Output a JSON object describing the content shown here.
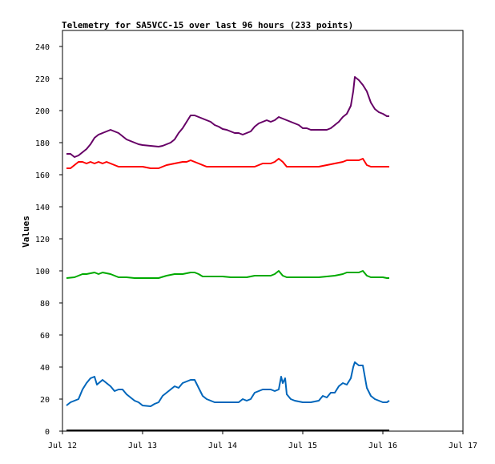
{
  "chart_data": {
    "type": "line",
    "title": "Telemetry for SA5VCC-15 over last 96 hours (233 points)",
    "xlabel": "",
    "ylabel": "Values",
    "ylim": [
      0,
      250
    ],
    "y_ticks": [
      0,
      20,
      40,
      60,
      80,
      100,
      120,
      140,
      160,
      180,
      200,
      220,
      240
    ],
    "x_ticks": [
      "Jul 12",
      "Jul 13",
      "Jul 14",
      "Jul 15",
      "Jul 16",
      "Jul 17"
    ],
    "x_unit": "days since Jul 12 00:00",
    "xlim": [
      0,
      5
    ],
    "grid": false,
    "series": [
      {
        "color": "#660066",
        "points": [
          [
            0.05,
            173
          ],
          [
            0.1,
            173
          ],
          [
            0.15,
            171
          ],
          [
            0.2,
            172
          ],
          [
            0.25,
            174
          ],
          [
            0.3,
            176
          ],
          [
            0.35,
            179
          ],
          [
            0.4,
            183
          ],
          [
            0.45,
            185
          ],
          [
            0.5,
            186
          ],
          [
            0.55,
            187
          ],
          [
            0.6,
            188
          ],
          [
            0.65,
            187
          ],
          [
            0.7,
            186
          ],
          [
            0.75,
            184
          ],
          [
            0.8,
            182
          ],
          [
            0.85,
            181
          ],
          [
            0.9,
            180
          ],
          [
            0.95,
            179
          ],
          [
            1.0,
            178.5
          ],
          [
            1.1,
            178
          ],
          [
            1.2,
            177.5
          ],
          [
            1.25,
            178
          ],
          [
            1.3,
            179
          ],
          [
            1.35,
            180
          ],
          [
            1.4,
            182
          ],
          [
            1.45,
            186
          ],
          [
            1.5,
            189
          ],
          [
            1.55,
            193
          ],
          [
            1.6,
            197
          ],
          [
            1.65,
            197
          ],
          [
            1.7,
            196
          ],
          [
            1.75,
            195
          ],
          [
            1.8,
            194
          ],
          [
            1.85,
            193
          ],
          [
            1.9,
            191
          ],
          [
            1.95,
            190
          ],
          [
            2.0,
            188.5
          ],
          [
            2.05,
            188
          ],
          [
            2.1,
            187
          ],
          [
            2.15,
            186
          ],
          [
            2.2,
            186
          ],
          [
            2.25,
            185
          ],
          [
            2.3,
            186
          ],
          [
            2.35,
            187
          ],
          [
            2.4,
            190
          ],
          [
            2.45,
            192
          ],
          [
            2.5,
            193
          ],
          [
            2.55,
            194
          ],
          [
            2.6,
            193
          ],
          [
            2.65,
            194
          ],
          [
            2.7,
            196
          ],
          [
            2.75,
            195
          ],
          [
            2.8,
            194
          ],
          [
            2.85,
            193
          ],
          [
            2.9,
            192
          ],
          [
            2.95,
            191
          ],
          [
            3.0,
            189
          ],
          [
            3.05,
            189
          ],
          [
            3.1,
            188
          ],
          [
            3.2,
            188
          ],
          [
            3.3,
            188
          ],
          [
            3.35,
            189
          ],
          [
            3.4,
            191
          ],
          [
            3.45,
            193
          ],
          [
            3.5,
            196
          ],
          [
            3.55,
            198
          ],
          [
            3.6,
            203
          ],
          [
            3.63,
            212
          ],
          [
            3.65,
            221
          ],
          [
            3.7,
            219
          ],
          [
            3.75,
            216
          ],
          [
            3.8,
            212
          ],
          [
            3.85,
            205
          ],
          [
            3.9,
            201
          ],
          [
            3.95,
            199
          ],
          [
            4.0,
            198
          ],
          [
            4.05,
            196.5
          ],
          [
            4.08,
            196.5
          ]
        ]
      },
      {
        "color": "#ff0000",
        "points": [
          [
            0.05,
            164
          ],
          [
            0.1,
            164
          ],
          [
            0.15,
            166
          ],
          [
            0.2,
            168
          ],
          [
            0.25,
            168
          ],
          [
            0.3,
            167
          ],
          [
            0.35,
            168
          ],
          [
            0.4,
            167
          ],
          [
            0.45,
            168
          ],
          [
            0.5,
            167
          ],
          [
            0.55,
            168
          ],
          [
            0.6,
            167
          ],
          [
            0.65,
            166
          ],
          [
            0.7,
            165
          ],
          [
            0.8,
            165
          ],
          [
            0.9,
            165
          ],
          [
            1.0,
            165
          ],
          [
            1.1,
            164
          ],
          [
            1.2,
            164
          ],
          [
            1.25,
            165
          ],
          [
            1.3,
            166
          ],
          [
            1.4,
            167
          ],
          [
            1.5,
            168
          ],
          [
            1.55,
            168
          ],
          [
            1.6,
            169
          ],
          [
            1.65,
            168
          ],
          [
            1.7,
            167
          ],
          [
            1.8,
            165
          ],
          [
            2.0,
            165
          ],
          [
            2.2,
            165
          ],
          [
            2.4,
            165
          ],
          [
            2.45,
            166
          ],
          [
            2.5,
            167
          ],
          [
            2.6,
            167
          ],
          [
            2.65,
            168
          ],
          [
            2.7,
            170
          ],
          [
            2.75,
            168
          ],
          [
            2.8,
            165
          ],
          [
            3.0,
            165
          ],
          [
            3.2,
            165
          ],
          [
            3.3,
            166
          ],
          [
            3.4,
            167
          ],
          [
            3.5,
            168
          ],
          [
            3.55,
            169
          ],
          [
            3.65,
            169
          ],
          [
            3.7,
            169
          ],
          [
            3.75,
            170
          ],
          [
            3.8,
            166
          ],
          [
            3.85,
            165
          ],
          [
            4.0,
            165
          ],
          [
            4.08,
            165
          ]
        ]
      },
      {
        "color": "#00aa00",
        "points": [
          [
            0.05,
            95.5
          ],
          [
            0.15,
            96
          ],
          [
            0.2,
            97
          ],
          [
            0.25,
            98
          ],
          [
            0.3,
            98
          ],
          [
            0.4,
            99
          ],
          [
            0.45,
            98
          ],
          [
            0.5,
            99
          ],
          [
            0.6,
            98
          ],
          [
            0.65,
            97
          ],
          [
            0.7,
            96
          ],
          [
            0.8,
            96
          ],
          [
            0.9,
            95.5
          ],
          [
            1.0,
            95.5
          ],
          [
            1.1,
            95.5
          ],
          [
            1.2,
            95.5
          ],
          [
            1.3,
            97
          ],
          [
            1.4,
            98
          ],
          [
            1.5,
            98
          ],
          [
            1.6,
            99
          ],
          [
            1.65,
            99
          ],
          [
            1.7,
            98
          ],
          [
            1.75,
            96.5
          ],
          [
            1.9,
            96.5
          ],
          [
            2.0,
            96.5
          ],
          [
            2.1,
            96
          ],
          [
            2.2,
            96
          ],
          [
            2.3,
            96
          ],
          [
            2.4,
            97
          ],
          [
            2.5,
            97
          ],
          [
            2.6,
            97
          ],
          [
            2.65,
            98
          ],
          [
            2.7,
            100
          ],
          [
            2.75,
            97
          ],
          [
            2.8,
            96
          ],
          [
            3.0,
            96
          ],
          [
            3.2,
            96
          ],
          [
            3.3,
            96.5
          ],
          [
            3.4,
            97
          ],
          [
            3.5,
            98
          ],
          [
            3.55,
            99
          ],
          [
            3.7,
            99
          ],
          [
            3.75,
            100
          ],
          [
            3.8,
            97
          ],
          [
            3.85,
            96
          ],
          [
            4.0,
            96
          ],
          [
            4.05,
            95.5
          ],
          [
            4.08,
            95.5
          ]
        ]
      },
      {
        "color": "#0066bb",
        "points": [
          [
            0.05,
            16
          ],
          [
            0.1,
            18
          ],
          [
            0.15,
            19
          ],
          [
            0.2,
            20
          ],
          [
            0.25,
            26
          ],
          [
            0.3,
            30
          ],
          [
            0.35,
            33
          ],
          [
            0.4,
            34
          ],
          [
            0.43,
            29
          ],
          [
            0.5,
            32
          ],
          [
            0.55,
            30
          ],
          [
            0.6,
            28
          ],
          [
            0.65,
            25
          ],
          [
            0.7,
            26
          ],
          [
            0.75,
            26
          ],
          [
            0.8,
            23
          ],
          [
            0.85,
            21
          ],
          [
            0.9,
            19
          ],
          [
            0.95,
            18
          ],
          [
            1.0,
            16
          ],
          [
            1.1,
            15.5
          ],
          [
            1.15,
            17
          ],
          [
            1.2,
            18
          ],
          [
            1.25,
            22
          ],
          [
            1.3,
            24
          ],
          [
            1.35,
            26
          ],
          [
            1.4,
            28
          ],
          [
            1.45,
            27
          ],
          [
            1.5,
            30
          ],
          [
            1.55,
            31
          ],
          [
            1.6,
            32
          ],
          [
            1.65,
            32
          ],
          [
            1.7,
            27
          ],
          [
            1.75,
            22
          ],
          [
            1.8,
            20
          ],
          [
            1.9,
            18
          ],
          [
            2.0,
            18
          ],
          [
            2.1,
            18
          ],
          [
            2.2,
            18
          ],
          [
            2.25,
            20
          ],
          [
            2.3,
            19
          ],
          [
            2.35,
            20
          ],
          [
            2.4,
            24
          ],
          [
            2.5,
            26
          ],
          [
            2.6,
            26
          ],
          [
            2.65,
            25
          ],
          [
            2.7,
            26
          ],
          [
            2.73,
            34
          ],
          [
            2.75,
            30
          ],
          [
            2.78,
            33
          ],
          [
            2.8,
            23
          ],
          [
            2.85,
            20
          ],
          [
            2.9,
            19
          ],
          [
            3.0,
            18
          ],
          [
            3.1,
            18
          ],
          [
            3.2,
            19
          ],
          [
            3.25,
            22
          ],
          [
            3.3,
            21
          ],
          [
            3.35,
            24
          ],
          [
            3.4,
            24
          ],
          [
            3.45,
            28
          ],
          [
            3.5,
            30
          ],
          [
            3.55,
            29
          ],
          [
            3.6,
            33
          ],
          [
            3.63,
            40
          ],
          [
            3.65,
            43
          ],
          [
            3.7,
            41
          ],
          [
            3.75,
            41
          ],
          [
            3.8,
            27
          ],
          [
            3.85,
            22
          ],
          [
            3.9,
            20
          ],
          [
            3.95,
            19
          ],
          [
            4.0,
            18
          ],
          [
            4.05,
            18
          ],
          [
            4.08,
            19
          ]
        ]
      },
      {
        "color": "#000000",
        "points": [
          [
            0.05,
            0.5
          ],
          [
            4.08,
            0.5
          ]
        ]
      }
    ]
  }
}
